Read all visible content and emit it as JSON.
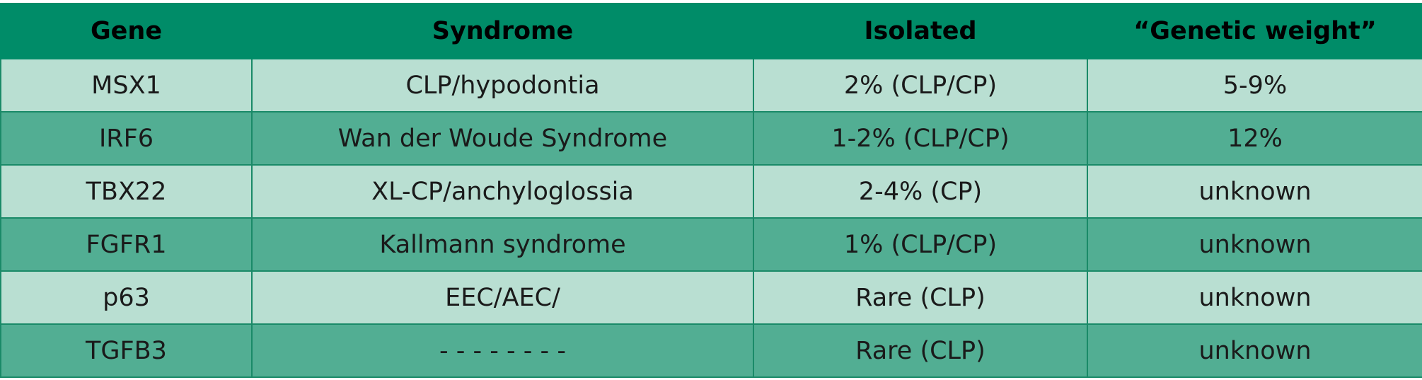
{
  "table": {
    "header": [
      "Gene",
      "Syndrome",
      "Isolated",
      "“Genetic weight”"
    ],
    "rows": [
      [
        "MSX1",
        "CLP/hypodontia",
        "2% (CLP/CP)",
        "5-9%"
      ],
      [
        "IRF6",
        "Wan der Woude Syndrome",
        "1-2% (CLP/CP)",
        "12%"
      ],
      [
        "TBX22",
        "XL-CP/anchyloglossia",
        "2-4% (CP)",
        "unknown"
      ],
      [
        "FGFR1",
        "Kallmann syndrome",
        "1% (CLP/CP)",
        "unknown"
      ],
      [
        "p63",
        "EEC/AEC/",
        "Rare (CLP)",
        "unknown"
      ],
      [
        "TGFB3",
        "- - - - - - - -",
        "Rare (CLP)",
        "unknown"
      ]
    ]
  }
}
